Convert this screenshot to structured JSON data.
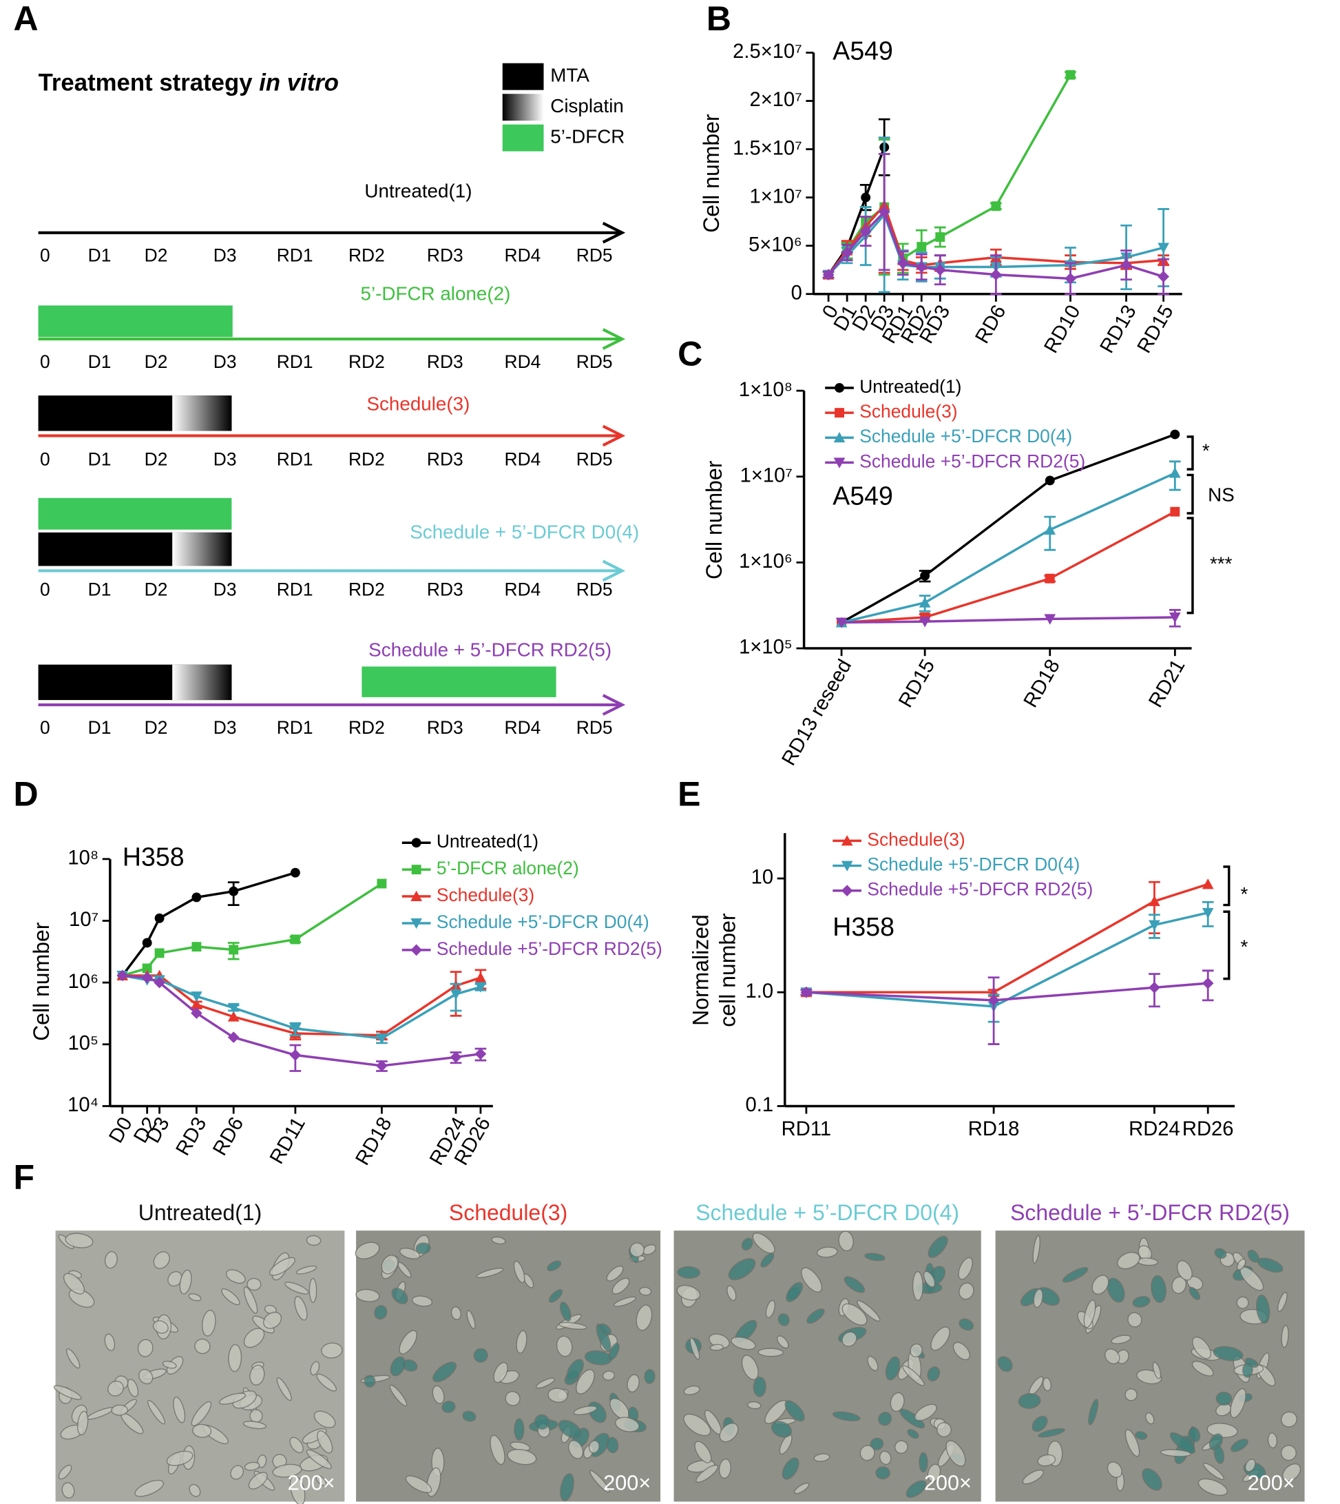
{
  "panel_labels": [
    "A",
    "B",
    "C",
    "D",
    "E",
    "F"
  ],
  "panel_a": {
    "title": "Treatment strategy ",
    "title_italic": "in vitro",
    "legend": [
      "MTA",
      "Cisplatin",
      "5’-DFCR"
    ],
    "days": [
      "0",
      "D1",
      "D2",
      "D3",
      "RD1",
      "RD2",
      "RD3",
      "RD4",
      "RD5"
    ],
    "timelines": [
      {
        "label": "Untreated(1)",
        "color": "#000000"
      },
      {
        "label": "5’-DFCR alone(2)",
        "color": "#3fbf3f"
      },
      {
        "label": "Schedule(3)",
        "color": "#e8352b"
      },
      {
        "label": "Schedule + 5’-DFCR D0(4)",
        "color": "#6ccbd3"
      },
      {
        "label": "Schedule + 5’-DFCR RD2(5)",
        "color": "#8e3fb2"
      }
    ]
  },
  "chart_data": [
    {
      "type": "line",
      "label": "A549",
      "ylabel": [
        "Cell number"
      ],
      "log": false,
      "legend": "upper right",
      "x": [
        0,
        1,
        2,
        3,
        4,
        5,
        6,
        9,
        13,
        16,
        18
      ],
      "xlim": [
        -0.8,
        19
      ],
      "xticks": [
        {
          "value": 0,
          "label": "0"
        },
        {
          "value": 1,
          "label": "D1"
        },
        {
          "value": 2,
          "label": "D2"
        },
        {
          "value": 3,
          "label": "D3"
        },
        {
          "value": 4,
          "label": "RD1"
        },
        {
          "value": 5,
          "label": "RD2"
        },
        {
          "value": 6,
          "label": "RD3"
        },
        {
          "value": 9,
          "label": "RD6"
        },
        {
          "value": 13,
          "label": "RD10"
        },
        {
          "value": 16,
          "label": "RD13"
        },
        {
          "value": 18,
          "label": "RD15"
        }
      ],
      "ylim": [
        0,
        25000000
      ],
      "yticks": [
        0,
        {
          "value": 5000000,
          "label": "5×10⁶"
        },
        {
          "value": 10000000,
          "label": "1×10⁷"
        },
        {
          "value": 15000000,
          "label": "1.5×10⁷"
        },
        {
          "value": 20000000,
          "label": "2×10⁷"
        },
        {
          "value": 25000000,
          "label": "2.5×10⁷"
        }
      ],
      "series": [
        {
          "name": "Untreated(1)",
          "color": "#000000",
          "marker": "circle",
          "values": [
            2000000,
            4800000,
            10000000,
            15200000,
            null,
            null,
            null,
            null,
            null,
            null,
            null
          ],
          "errors": [
            300000,
            500000,
            1300000,
            2900000,
            null,
            null,
            null,
            null,
            null,
            null,
            null
          ]
        },
        {
          "name": "5’-DFCR alone(2)",
          "color": "#3fbf3f",
          "marker": "square",
          "values": [
            2000000,
            4500000,
            7500000,
            9000000,
            3700000,
            4900000,
            5900000,
            9100000,
            22700000,
            null,
            null
          ],
          "errors": [
            300000,
            800000,
            1500000,
            7000000,
            1500000,
            1700000,
            1000000,
            300000,
            300000,
            null,
            null
          ]
        },
        {
          "name": "Schedule(3)",
          "color": "#e8352b",
          "marker": "triangle-up",
          "values": [
            2000000,
            4500000,
            7000000,
            9200000,
            3500000,
            3000000,
            3200000,
            3800000,
            3300000,
            3200000,
            3500000
          ],
          "errors": [
            300000,
            1000000,
            1000000,
            7000000,
            1000000,
            800000,
            800000,
            800000,
            700000,
            600000,
            500000
          ]
        },
        {
          "name": "Schedule +5’-DFCR D0(4)",
          "color": "#3aa0b8",
          "marker": "triangle-down",
          "values": [
            2000000,
            4000000,
            6000000,
            8200000,
            3000000,
            2800000,
            2800000,
            2800000,
            3000000,
            3800000,
            4800000
          ],
          "errors": [
            300000,
            800000,
            3000000,
            8000000,
            1500000,
            1500000,
            1200000,
            1000000,
            1800000,
            3300000,
            4000000
          ]
        },
        {
          "name": "Schedule +5’-DFCR RD2(5)",
          "color": "#8e3fb2",
          "marker": "diamond",
          "values": [
            2000000,
            4300000,
            6500000,
            8500000,
            3200000,
            2800000,
            2500000,
            2000000,
            1600000,
            3000000,
            1800000
          ],
          "errors": [
            300000,
            800000,
            1500000,
            6000000,
            1200000,
            1300000,
            1500000,
            2000000,
            1600000,
            1500000,
            1800000
          ]
        }
      ]
    },
    {
      "type": "line",
      "label": "A549",
      "ylabel": [
        "Cell number"
      ],
      "log": true,
      "legend": "upper left",
      "x": [
        13,
        15,
        18,
        21
      ],
      "xlim": [
        12.1,
        21.4
      ],
      "xticks": [
        {
          "value": 13,
          "label": "RD13 reseed"
        },
        {
          "value": 15,
          "label": "RD15"
        },
        {
          "value": 18,
          "label": "RD18"
        },
        {
          "value": 21,
          "label": "RD21"
        }
      ],
      "ylim": [
        100000,
        100000000
      ],
      "yticks": [
        {
          "value": 100000,
          "label": "1×10⁵"
        },
        {
          "value": 1000000,
          "label": "1×10⁶"
        },
        {
          "value": 10000000,
          "label": "1×10⁷"
        },
        {
          "value": 100000000,
          "label": "1×10⁸"
        }
      ],
      "annotations": [
        "*",
        "NS",
        "***"
      ],
      "series": [
        {
          "name": "Untreated(1)",
          "color": "#000000",
          "marker": "circle",
          "values": [
            200000,
            700000,
            9000000,
            31000000
          ],
          "errors": [
            null,
            100000,
            null,
            null
          ]
        },
        {
          "name": "Schedule(3)",
          "color": "#e8352b",
          "marker": "square",
          "values": [
            200000,
            230000,
            650000,
            3900000
          ],
          "errors": [
            null,
            20000,
            50000,
            null
          ]
        },
        {
          "name": "Schedule +5’-DFCR D0(4)",
          "color": "#3aa0b8",
          "marker": "triangle-up",
          "values": [
            200000,
            340000,
            2400000,
            11000000
          ],
          "errors": [
            null,
            70000,
            1000000,
            4000000
          ]
        },
        {
          "name": "Schedule +5’-DFCR RD2(5)",
          "color": "#8e3fb2",
          "marker": "triangle-down",
          "values": [
            200000,
            205000,
            220000,
            230000
          ],
          "errors": [
            null,
            null,
            null,
            50000
          ]
        }
      ]
    },
    {
      "type": "line",
      "label": "H358",
      "ylabel": [
        "Cell number"
      ],
      "log": true,
      "legend": "upper right",
      "x": [
        0,
        2,
        3,
        6,
        9,
        14,
        21,
        27,
        29
      ],
      "xlim": [
        -1,
        30
      ],
      "xticks": [
        {
          "value": 0,
          "label": "D0"
        },
        {
          "value": 2,
          "label": "D2"
        },
        {
          "value": 3,
          "label": "D3"
        },
        {
          "value": 6,
          "label": "RD3"
        },
        {
          "value": 9,
          "label": "RD6"
        },
        {
          "value": 14,
          "label": "RD11"
        },
        {
          "value": 21,
          "label": "RD18"
        },
        {
          "value": 27,
          "label": "RD24"
        },
        {
          "value": 29,
          "label": "RD26"
        }
      ],
      "ylim": [
        10000,
        100000000
      ],
      "yticks": [
        {
          "value": 10000,
          "label": "10⁴"
        },
        {
          "value": 100000,
          "label": "10⁵"
        },
        {
          "value": 1000000,
          "label": "10⁶"
        },
        {
          "value": 10000000,
          "label": "10⁷"
        },
        {
          "value": 100000000,
          "label": "10⁸"
        }
      ],
      "series": [
        {
          "name": "Untreated(1)",
          "color": "#000000",
          "marker": "circle",
          "values": [
            1300000,
            4400000,
            11000000,
            24000000,
            30000000,
            60000000,
            null,
            null,
            null
          ],
          "errors": [
            null,
            null,
            null,
            null,
            12000000,
            null,
            null,
            null,
            null
          ]
        },
        {
          "name": "5’-DFCR alone(2)",
          "color": "#3fbf3f",
          "marker": "square",
          "values": [
            1300000,
            1700000,
            3000000,
            3800000,
            3400000,
            5000000,
            40000000,
            null,
            null
          ],
          "errors": [
            null,
            null,
            null,
            null,
            1000000,
            500000,
            null,
            null,
            null
          ]
        },
        {
          "name": "Schedule(3)",
          "color": "#e8352b",
          "marker": "triangle-up",
          "values": [
            1300000,
            1300000,
            1300000,
            440000,
            280000,
            150000,
            140000,
            890000,
            1200000
          ],
          "errors": [
            null,
            null,
            null,
            50000,
            null,
            30000,
            20000,
            600000,
            400000
          ]
        },
        {
          "name": "Schedule +5’-DFCR D0(4)",
          "color": "#3aa0b8",
          "marker": "triangle-down",
          "values": [
            1300000,
            1100000,
            1100000,
            600000,
            390000,
            180000,
            125000,
            650000,
            850000
          ],
          "errors": [
            null,
            null,
            null,
            null,
            40000,
            40000,
            20000,
            300000,
            100000
          ]
        },
        {
          "name": "Schedule +5’-DFCR RD2(5)",
          "color": "#8e3fb2",
          "marker": "diamond",
          "values": [
            1300000,
            1200000,
            1000000,
            320000,
            130000,
            67000,
            45000,
            62000,
            70000
          ],
          "errors": [
            null,
            null,
            null,
            null,
            null,
            30000,
            8000,
            12000,
            15000
          ]
        }
      ]
    },
    {
      "type": "line",
      "label": "H358",
      "ylabel": [
        "Normalized",
        "cell number"
      ],
      "log": true,
      "legend": "upper left",
      "x": [
        11,
        18,
        24,
        26
      ],
      "xlim": [
        10.2,
        27
      ],
      "xticks": [
        {
          "value": 11,
          "label": "RD11"
        },
        {
          "value": 18,
          "label": "RD18"
        },
        {
          "value": 24,
          "label": "RD24"
        },
        {
          "value": 26,
          "label": "RD26"
        }
      ],
      "ylim": [
        0.1,
        25
      ],
      "yticks": [
        0.1,
        {
          "value": 1,
          "label": "1.0"
        },
        10
      ],
      "annotations": [
        "*",
        "*"
      ],
      "series": [
        {
          "name": "Schedule(3)",
          "color": "#e8352b",
          "marker": "triangle-up",
          "values": [
            1.0,
            1.0,
            6.3,
            8.9
          ],
          "errors": [
            0.05,
            0.05,
            3,
            null
          ]
        },
        {
          "name": "Schedule +5’-DFCR D0(4)",
          "color": "#3aa0b8",
          "marker": "triangle-down",
          "values": [
            1.0,
            0.75,
            3.9,
            5.0
          ],
          "errors": [
            0.05,
            0.2,
            0.9,
            1.2
          ]
        },
        {
          "name": "Schedule +5’-DFCR RD2(5)",
          "color": "#8e3fb2",
          "marker": "diamond",
          "values": [
            1.0,
            0.85,
            1.1,
            1.2
          ],
          "errors": [
            0.05,
            0.5,
            0.35,
            0.35
          ]
        }
      ]
    }
  ],
  "panel_f": {
    "titles": [
      {
        "text": "Untreated(1)",
        "color": "#111111"
      },
      {
        "text": "Schedule(3)",
        "color": "#e8352b"
      },
      {
        "text": "Schedule + 5’-DFCR D0(4)",
        "color": "#6ccbd3"
      },
      {
        "text": "Schedule + 5’-DFCR RD2(5)",
        "color": "#8e3fb2"
      }
    ],
    "magnification": "200×"
  }
}
